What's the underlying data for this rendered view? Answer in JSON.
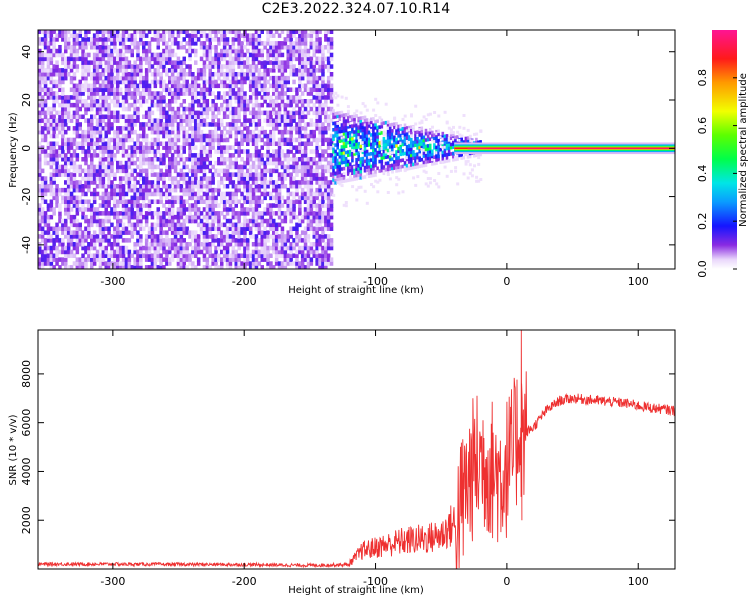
{
  "title": "C2E3.2022.324.07.10.R14",
  "colors": {
    "snr_line": "#ee3030",
    "signal_core": "#ff2020",
    "noise": "#7a1fe6"
  },
  "chart_data": [
    {
      "type": "heatmap",
      "xlabel": "Height of straight line (km)",
      "ylabel": "Frequency (Hz)",
      "xlim": [
        -357,
        128
      ],
      "ylim": [
        -50,
        49
      ],
      "xticks": [
        -300,
        -200,
        -100,
        0,
        100
      ],
      "yticks": [
        -40,
        -20,
        0,
        20,
        40
      ],
      "colorbar": {
        "label": "Normalized spectral amplitude",
        "range": [
          0,
          1
        ],
        "ticks": [
          "0.0",
          "0.2",
          "0.4",
          "0.6",
          "0.8"
        ],
        "colormap": "rainbow (white, purple, blue, cyan, green, yellow, orange, red, magenta)"
      },
      "regions": [
        {
          "x_range": [
            -357,
            -133
          ],
          "description": "noise",
          "amplitude_approx": 0.1,
          "freq_spread_hz": [
            -50,
            49
          ]
        },
        {
          "x_range": [
            -133,
            -40
          ],
          "description": "scattered signal",
          "amplitude_approx": 0.3,
          "freq_center_hz": 0,
          "freq_spread_hz": [
            -12,
            12
          ]
        },
        {
          "x_range": [
            -40,
            128
          ],
          "description": "narrow carrier",
          "amplitude_approx": 0.95,
          "freq_center_hz": 0
        }
      ],
      "grid": false
    },
    {
      "type": "line",
      "xlabel": "Height of straight line (km)",
      "ylabel": "SNR (10 * v/v)",
      "xlim": [
        -357,
        128
      ],
      "ylim": [
        0,
        9800
      ],
      "xticks": [
        -300,
        -200,
        -100,
        0,
        100
      ],
      "yticks": [
        2000,
        4000,
        6000,
        8000
      ],
      "x": [
        -357,
        -300,
        -200,
        -150,
        -120,
        -110,
        -100,
        -90,
        -80,
        -70,
        -60,
        -50,
        -40,
        -35,
        -30,
        -25,
        -20,
        -15,
        -10,
        -5,
        0,
        5,
        10,
        12,
        20,
        30,
        40,
        50,
        60,
        70,
        80,
        90,
        100,
        110,
        128
      ],
      "values": [
        200,
        200,
        180,
        150,
        180,
        600,
        700,
        800,
        900,
        950,
        1000,
        1100,
        1500,
        2500,
        3500,
        4200,
        4500,
        4300,
        4000,
        3800,
        4200,
        4700,
        6000,
        5500,
        5800,
        6500,
        6900,
        7000,
        6950,
        6900,
        6850,
        6800,
        6700,
        6600,
        6500
      ],
      "notable": [
        {
          "x": 11,
          "y": 9800,
          "description": "peak spike"
        }
      ],
      "grid": false
    }
  ]
}
